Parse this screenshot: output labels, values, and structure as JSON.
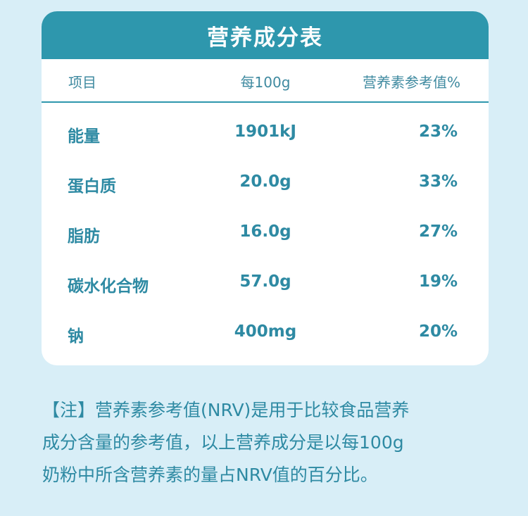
{
  "table": {
    "title": "营养成分表",
    "headers": {
      "name": "项目",
      "per100g": "每100g",
      "nrv": "营养素参考值%"
    },
    "rows": [
      {
        "name": "能量",
        "per100g": "1901kJ",
        "nrv": "23%"
      },
      {
        "name": "蛋白质",
        "per100g": "20.0g",
        "nrv": "33%"
      },
      {
        "name": "脂肪",
        "per100g": "16.0g",
        "nrv": "27%"
      },
      {
        "name": "碳水化合物",
        "per100g": "57.0g",
        "nrv": "19%"
      },
      {
        "name": "钠",
        "per100g": "400mg",
        "nrv": "20%"
      }
    ]
  },
  "note": {
    "lines": [
      "【注】营养素参考值(NRV)是用于比较食品营养",
      "成分含量的参考值，以上营养成分是以每100g",
      "奶粉中所含营养素的量占NRV值的百分比。"
    ]
  },
  "colors": {
    "accent": "#2e97ad",
    "text": "#2e8aa3",
    "background": "#d8eef7",
    "card": "#ffffff"
  }
}
